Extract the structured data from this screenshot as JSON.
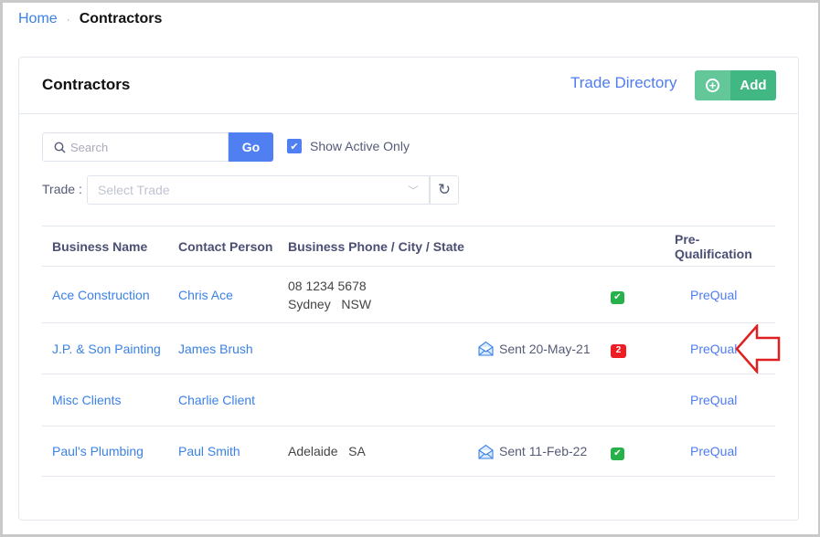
{
  "breadcrumb": {
    "home": "Home",
    "separator": "·",
    "current": "Contractors"
  },
  "card": {
    "title": "Contractors",
    "trade_directory": "Trade Directory",
    "add_label": "Add"
  },
  "filters": {
    "search_placeholder": "Search",
    "go_label": "Go",
    "show_active_label": "Show Active Only",
    "show_active_checked": true,
    "trade_label": "Trade :",
    "trade_placeholder": "Select Trade"
  },
  "table": {
    "headers": [
      "Business Name",
      "Contact Person",
      "Business Phone / City / State",
      "",
      "",
      "Pre-Qualification"
    ],
    "rows": [
      {
        "business": "Ace Construction",
        "contact": "Chris Ace",
        "phone": "08 1234 5678",
        "location": "Sydney   NSW",
        "sent": "",
        "status": "check",
        "count": "",
        "prequal": "PreQual"
      },
      {
        "business": "J.P. & Son Painting",
        "contact": "James Brush",
        "phone": "",
        "location": "",
        "sent": "Sent 20-May-21",
        "status": "count",
        "count": "2",
        "prequal": "PreQual"
      },
      {
        "business": "Misc Clients",
        "contact": "Charlie Client",
        "phone": "",
        "location": "",
        "sent": "",
        "status": "",
        "count": "",
        "prequal": "PreQual"
      },
      {
        "business": "Paul's Plumbing",
        "contact": "Paul Smith",
        "phone": "",
        "location": "Adelaide   SA",
        "sent": "Sent 11-Feb-22",
        "status": "check",
        "count": "",
        "prequal": "PreQual"
      }
    ]
  },
  "colors": {
    "link": "#3b82e6",
    "primary": "#4f7ff0",
    "success": "#41b883",
    "danger": "#ee1d23",
    "annotation": "#e02020"
  }
}
